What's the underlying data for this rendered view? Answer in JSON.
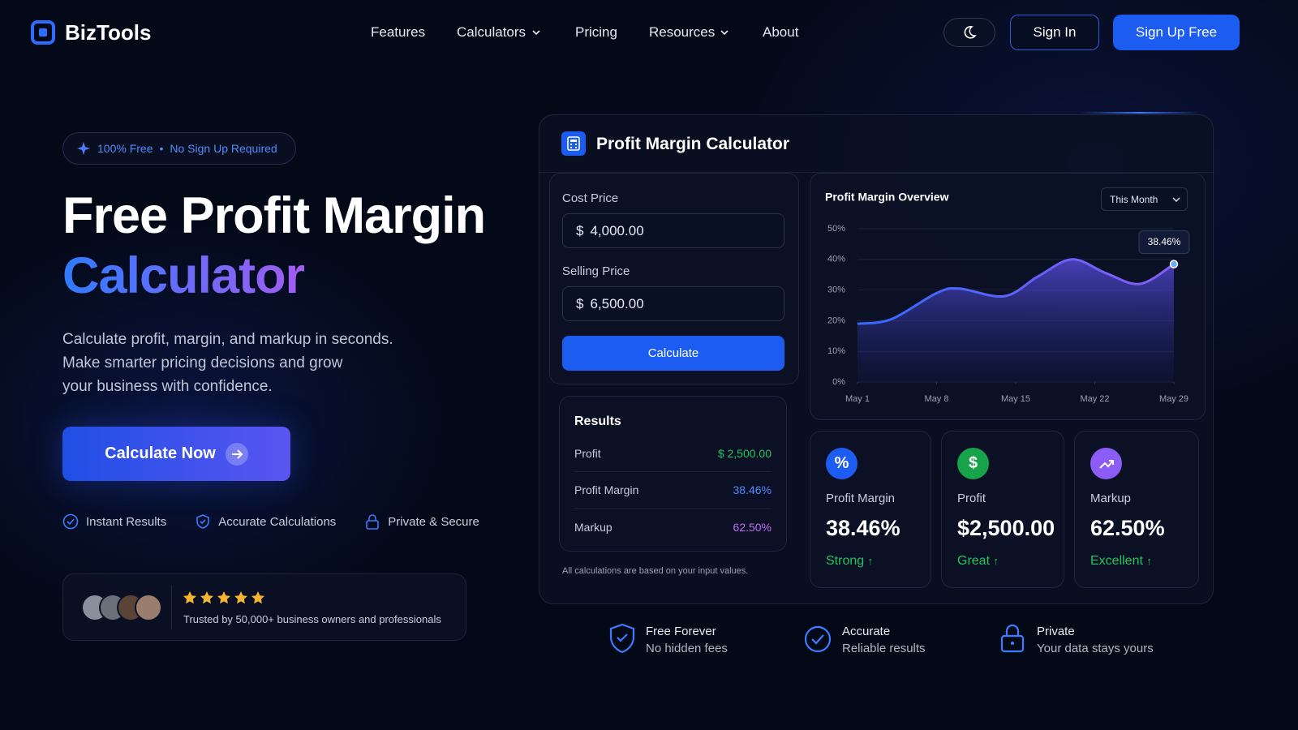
{
  "nav": {
    "brand": "BizTools",
    "links": [
      "Features",
      "Calculators",
      "Pricing",
      "Resources",
      "About"
    ],
    "sign_in": "Sign In",
    "sign_up": "Sign Up Free"
  },
  "hero": {
    "badge": [
      "100% Free",
      "No Sign Up Required"
    ],
    "title_line_1": "Free Profit Margin",
    "title_line_2": "Calculator",
    "description": [
      "Calculate profit, margin, and markup in seconds.",
      "Make smarter pricing decisions and grow",
      "your business with confidence."
    ],
    "cta": "Calculate Now",
    "features": [
      "Instant Results",
      "Accurate Calculations",
      "Private & Secure"
    ],
    "trust": "Trusted by 50,000+ business owners and professionals"
  },
  "calculator": {
    "title": "Profit Margin Calculator",
    "cost_label": "Cost Price",
    "cost_value": "4,000.00",
    "selling_label": "Selling Price",
    "selling_value": "6,500.00",
    "currency": "$",
    "button": "Calculate",
    "results_title": "Results",
    "results": [
      [
        "Profit",
        "$ 2,500.00"
      ],
      [
        "Profit Margin",
        "38.46%"
      ],
      [
        "Markup",
        "62.50%"
      ]
    ],
    "note": "All calculations are based on your input values."
  },
  "chart_filter": "This Month",
  "chart_data": {
    "type": "area",
    "title": "Profit Margin Overview",
    "x": [
      1,
      4,
      8,
      10,
      14,
      17,
      20,
      23,
      26,
      29
    ],
    "values": [
      19,
      20.5,
      29,
      30.5,
      28,
      34.5,
      40,
      35.5,
      32,
      38.46
    ],
    "value_labels": [
      null,
      null,
      null,
      null,
      null,
      null,
      null,
      null,
      null,
      "38.46%"
    ],
    "color": "#5b63f0",
    "xlim": [
      1,
      29
    ],
    "xticks": [
      {
        "value": 1,
        "label": "May 1"
      },
      {
        "value": 8,
        "label": "May 8"
      },
      {
        "value": 15,
        "label": "May 15"
      },
      {
        "value": 22,
        "label": "May 22"
      },
      {
        "value": 29,
        "label": "May 29"
      }
    ],
    "ylim": [
      0,
      50
    ],
    "yticks": [
      {
        "value": 0,
        "label": "0%"
      },
      {
        "value": 10,
        "label": "10%"
      },
      {
        "value": 20,
        "label": "20%"
      },
      {
        "value": 30,
        "label": "30%"
      },
      {
        "value": 40,
        "label": "40%"
      },
      {
        "value": 50,
        "label": "50%"
      }
    ],
    "grid": true
  },
  "stats": [
    {
      "label": "Profit Margin",
      "value": "38.46%",
      "rating": "Strong"
    },
    {
      "label": "Profit",
      "value": "$2,500.00",
      "rating": "Great"
    },
    {
      "label": "Markup",
      "value": "62.50%",
      "rating": "Excellent"
    }
  ],
  "footer_features": [
    {
      "title": "Free Forever",
      "subtitle": "No hidden fees"
    },
    {
      "title": "Accurate",
      "subtitle": "Reliable results"
    },
    {
      "title": "Private",
      "subtitle": "Your data stays yours"
    }
  ]
}
